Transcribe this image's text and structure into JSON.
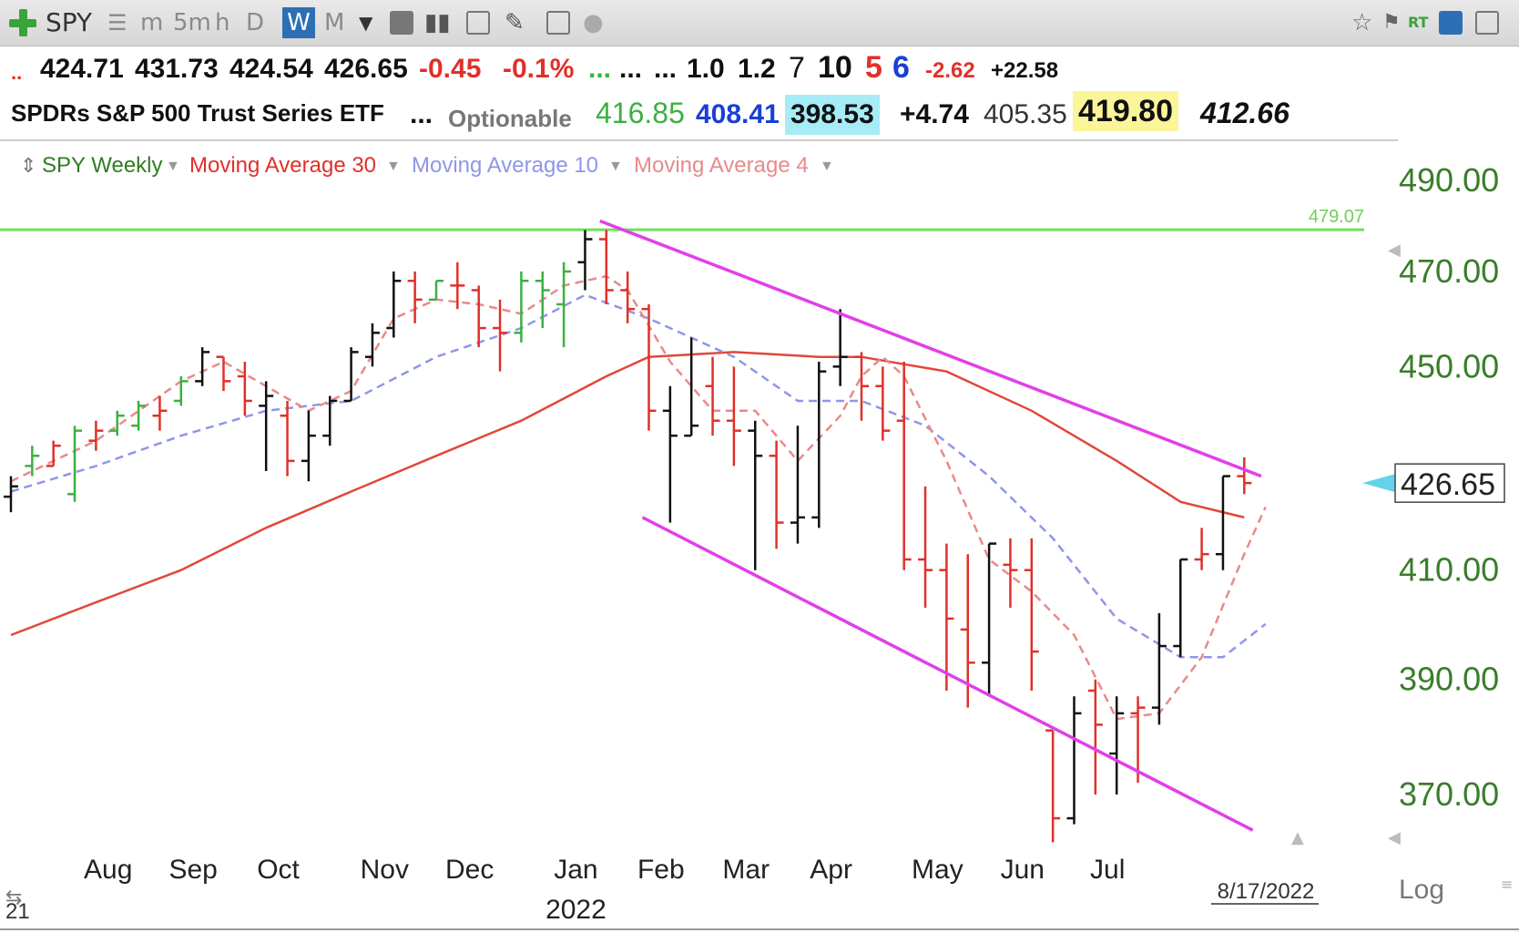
{
  "toolbar": {
    "symbol": "SPY",
    "periods": [
      "m",
      "5m",
      "h",
      "D",
      "W",
      "M"
    ],
    "active_period": "W"
  },
  "quote_row1": {
    "open": "424.71",
    "high": "431.73",
    "low": "424.54",
    "close": "426.65",
    "change": "-0.45",
    "change_pct": "-0.1%",
    "dots1": "...",
    "dots2": "...",
    "dots3": "...",
    "v1": "1.0",
    "v2": "1.2",
    "v3": "7",
    "v4": "10",
    "v5": "5",
    "v6": "6",
    "v7": "-2.62",
    "v8": "+22.58"
  },
  "quote_row2": {
    "name": "SPDRs S&P 500 Trust Series ETF",
    "dots": "...",
    "optionable": "Optionable",
    "p1": "416.85",
    "p2": "408.41",
    "p3": "398.53",
    "p4": "+4.74",
    "p5": "405.35",
    "p6": "419.80",
    "p7": "412.66"
  },
  "colors": {
    "up_bar": "#3cb043",
    "down_bar": "#e0302a",
    "neutral_bar": "#111111",
    "ma30": "#e0483a",
    "ma10": "#8f96e8",
    "ma4": "#e88a8a",
    "trendline": "#e040e8",
    "level_line": "#6fe05a",
    "price_axis": "#3a7d2a"
  },
  "chart_data": {
    "type": "ohlc",
    "legend": {
      "series_label": "SPY Weekly",
      "ma30": "Moving Average 30",
      "ma10": "Moving Average 10",
      "ma4": "Moving Average 4"
    },
    "y_axis": {
      "scale": "log",
      "ticks": [
        "490.00",
        "470.00",
        "450.00",
        "410.00",
        "390.00",
        "370.00"
      ],
      "range": [
        361,
        497
      ],
      "scale_label": "Log"
    },
    "x_axis": {
      "months": [
        "Aug",
        "Sep",
        "Oct",
        "Nov",
        "Dec",
        "Jan",
        "Feb",
        "Mar",
        "Apr",
        "May",
        "Jun",
        "Jul"
      ],
      "month_week_index": [
        5,
        9,
        13,
        18,
        22,
        27,
        31,
        35,
        39,
        44,
        48,
        52
      ],
      "year_label": "2022",
      "year_week_index": 27,
      "date_label": "8/17/2022",
      "corner_label": "21"
    },
    "last_price": "426.65",
    "level": {
      "value": 479.07,
      "label": "479.07"
    },
    "bars": [
      {
        "o": 424.0,
        "h": 428.0,
        "l": 421.0,
        "c": 426.0,
        "t": "n"
      },
      {
        "o": 430.0,
        "h": 434.0,
        "l": 428.0,
        "c": 432.0,
        "t": "u"
      },
      {
        "o": 430.0,
        "h": 435.0,
        "l": 430.0,
        "c": 434.0,
        "t": "r"
      },
      {
        "o": 424.5,
        "h": 438.0,
        "l": 423.0,
        "c": 437.0,
        "t": "u"
      },
      {
        "o": 435.0,
        "h": 439.0,
        "l": 433.0,
        "c": 437.0,
        "t": "r"
      },
      {
        "o": 437.0,
        "h": 441.0,
        "l": 436.0,
        "c": 440.0,
        "t": "u"
      },
      {
        "o": 438.0,
        "h": 443.0,
        "l": 437.0,
        "c": 442.0,
        "t": "u"
      },
      {
        "o": 440.0,
        "h": 444.0,
        "l": 437.0,
        "c": 441.0,
        "t": "r"
      },
      {
        "o": 443.0,
        "h": 448.0,
        "l": 442.0,
        "c": 447.0,
        "t": "u"
      },
      {
        "o": 447.0,
        "h": 454.0,
        "l": 446.0,
        "c": 453.0,
        "t": "n"
      },
      {
        "o": 452.0,
        "h": 452.0,
        "l": 445.0,
        "c": 447.0,
        "t": "r"
      },
      {
        "o": 448.0,
        "h": 451.0,
        "l": 440.0,
        "c": 443.0,
        "t": "r"
      },
      {
        "o": 442.0,
        "h": 447.0,
        "l": 429.0,
        "c": 444.0,
        "t": "n"
      },
      {
        "o": 440.0,
        "h": 443.0,
        "l": 428.0,
        "c": 431.0,
        "t": "r"
      },
      {
        "o": 431.0,
        "h": 441.0,
        "l": 427.0,
        "c": 436.0,
        "t": "n"
      },
      {
        "o": 436.0,
        "h": 444.0,
        "l": 434.0,
        "c": 443.0,
        "t": "n"
      },
      {
        "o": 443.0,
        "h": 454.0,
        "l": 443.0,
        "c": 453.0,
        "t": "n"
      },
      {
        "o": 452.0,
        "h": 459.0,
        "l": 450.0,
        "c": 457.0,
        "t": "n"
      },
      {
        "o": 458.0,
        "h": 470.0,
        "l": 456.0,
        "c": 468.0,
        "t": "n"
      },
      {
        "o": 468.0,
        "h": 470.0,
        "l": 459.0,
        "c": 464.0,
        "t": "r"
      },
      {
        "o": 464.0,
        "h": 468.0,
        "l": 464.0,
        "c": 468.0,
        "t": "u"
      },
      {
        "o": 467.0,
        "h": 472.0,
        "l": 462.0,
        "c": 467.0,
        "t": "r"
      },
      {
        "o": 466.0,
        "h": 467.0,
        "l": 454.0,
        "c": 458.0,
        "t": "r"
      },
      {
        "o": 458.0,
        "h": 464.0,
        "l": 449.0,
        "c": 457.0,
        "t": "r"
      },
      {
        "o": 457.0,
        "h": 470.0,
        "l": 455.0,
        "c": 468.0,
        "t": "u"
      },
      {
        "o": 468.0,
        "h": 470.0,
        "l": 458.0,
        "c": 466.0,
        "t": "u"
      },
      {
        "o": 463.0,
        "h": 472.0,
        "l": 454.0,
        "c": 470.0,
        "t": "u"
      },
      {
        "o": 472.0,
        "h": 479.0,
        "l": 466.0,
        "c": 477.0,
        "t": "n"
      },
      {
        "o": 477.0,
        "h": 479.0,
        "l": 463.0,
        "c": 466.0,
        "t": "r"
      },
      {
        "o": 466.0,
        "h": 470.0,
        "l": 459.0,
        "c": 462.0,
        "t": "r"
      },
      {
        "o": 462.0,
        "h": 463.0,
        "l": 437.0,
        "c": 441.0,
        "t": "r"
      },
      {
        "o": 441.0,
        "h": 446.0,
        "l": 419.0,
        "c": 436.0,
        "t": "n"
      },
      {
        "o": 436.0,
        "h": 456.0,
        "l": 436.0,
        "c": 438.0,
        "t": "n"
      },
      {
        "o": 446.0,
        "h": 452.0,
        "l": 436.0,
        "c": 439.0,
        "t": "r"
      },
      {
        "o": 439.0,
        "h": 450.0,
        "l": 430.0,
        "c": 437.0,
        "t": "r"
      },
      {
        "o": 437.0,
        "h": 439.0,
        "l": 410.0,
        "c": 432.0,
        "t": "n"
      },
      {
        "o": 432.0,
        "h": 435.0,
        "l": 414.0,
        "c": 419.0,
        "t": "r"
      },
      {
        "o": 419.0,
        "h": 438.0,
        "l": 415.0,
        "c": 420.0,
        "t": "n"
      },
      {
        "o": 420.0,
        "h": 451.0,
        "l": 418.0,
        "c": 449.0,
        "t": "n"
      },
      {
        "o": 450.0,
        "h": 462.0,
        "l": 446.0,
        "c": 452.0,
        "t": "n"
      },
      {
        "o": 452.0,
        "h": 453.0,
        "l": 439.0,
        "c": 446.0,
        "t": "r"
      },
      {
        "o": 446.0,
        "h": 450.0,
        "l": 435.0,
        "c": 437.0,
        "t": "r"
      },
      {
        "o": 439.0,
        "h": 451.0,
        "l": 410.0,
        "c": 412.0,
        "t": "r"
      },
      {
        "o": 412.0,
        "h": 426.0,
        "l": 403.0,
        "c": 410.0,
        "t": "r"
      },
      {
        "o": 410.0,
        "h": 415.0,
        "l": 388.0,
        "c": 401.0,
        "t": "r"
      },
      {
        "o": 399.0,
        "h": 413.0,
        "l": 385.0,
        "c": 393.0,
        "t": "r"
      },
      {
        "o": 393.0,
        "h": 415.0,
        "l": 387.0,
        "c": 415.0,
        "t": "n"
      },
      {
        "o": 411.0,
        "h": 416.0,
        "l": 403.0,
        "c": 410.0,
        "t": "r"
      },
      {
        "o": 410.0,
        "h": 416.0,
        "l": 388.0,
        "c": 395.0,
        "t": "r"
      },
      {
        "o": 381.0,
        "h": 381.0,
        "l": 362.0,
        "c": 366.0,
        "t": "r"
      },
      {
        "o": 366.0,
        "h": 387.0,
        "l": 365.0,
        "c": 384.0,
        "t": "n"
      },
      {
        "o": 388.0,
        "h": 390.0,
        "l": 370.0,
        "c": 382.0,
        "t": "r"
      },
      {
        "o": 377.0,
        "h": 387.0,
        "l": 370.0,
        "c": 384.0,
        "t": "n"
      },
      {
        "o": 384.0,
        "h": 387.0,
        "l": 372.0,
        "c": 385.0,
        "t": "r"
      },
      {
        "o": 385.0,
        "h": 402.0,
        "l": 382.0,
        "c": 396.0,
        "t": "n"
      },
      {
        "o": 396.0,
        "h": 412.0,
        "l": 394.0,
        "c": 412.0,
        "t": "n"
      },
      {
        "o": 412.0,
        "h": 418.0,
        "l": 410.0,
        "c": 413.0,
        "t": "r"
      },
      {
        "o": 413.0,
        "h": 428.0,
        "l": 410.0,
        "c": 428.0,
        "t": "n"
      },
      {
        "o": 428.0,
        "h": 431.7,
        "l": 424.5,
        "c": 426.65,
        "t": "r"
      }
    ],
    "ma30": [
      [
        0,
        398
      ],
      [
        4,
        404
      ],
      [
        8,
        410
      ],
      [
        12,
        418
      ],
      [
        16,
        425
      ],
      [
        20,
        432
      ],
      [
        24,
        439
      ],
      [
        28,
        448
      ],
      [
        30,
        452
      ],
      [
        34,
        453
      ],
      [
        38,
        452
      ],
      [
        40,
        452
      ],
      [
        44,
        449
      ],
      [
        48,
        441
      ],
      [
        52,
        431
      ],
      [
        55,
        423
      ],
      [
        58,
        420
      ]
    ],
    "ma10": [
      [
        0,
        425
      ],
      [
        4,
        430
      ],
      [
        8,
        436
      ],
      [
        12,
        441
      ],
      [
        16,
        443
      ],
      [
        20,
        452
      ],
      [
        24,
        458
      ],
      [
        27,
        465
      ],
      [
        30,
        460
      ],
      [
        34,
        452
      ],
      [
        37,
        443
      ],
      [
        40,
        443
      ],
      [
        43,
        438
      ],
      [
        46,
        428
      ],
      [
        49,
        416
      ],
      [
        52,
        401
      ],
      [
        55,
        394
      ],
      [
        57,
        394
      ],
      [
        59,
        400
      ]
    ],
    "ma4": [
      [
        0,
        427
      ],
      [
        4,
        435
      ],
      [
        8,
        447
      ],
      [
        10,
        451
      ],
      [
        12,
        446
      ],
      [
        14,
        441
      ],
      [
        16,
        445
      ],
      [
        18,
        460
      ],
      [
        20,
        464
      ],
      [
        22,
        463
      ],
      [
        24,
        461
      ],
      [
        26,
        467
      ],
      [
        28,
        469
      ],
      [
        29,
        466
      ],
      [
        31,
        451
      ],
      [
        33,
        441
      ],
      [
        35,
        441
      ],
      [
        37,
        431
      ],
      [
        39,
        440
      ],
      [
        40,
        448
      ],
      [
        41,
        452
      ],
      [
        42,
        448
      ],
      [
        44,
        431
      ],
      [
        46,
        412
      ],
      [
        48,
        406
      ],
      [
        50,
        398
      ],
      [
        52,
        383
      ],
      [
        54,
        384
      ],
      [
        56,
        394
      ],
      [
        58,
        413
      ],
      [
        59,
        422
      ]
    ],
    "upper_trendline": [
      [
        27.7,
        481
      ],
      [
        58.8,
        428
      ]
    ],
    "lower_trendline": [
      [
        29.7,
        420
      ],
      [
        58.4,
        364
      ]
    ]
  }
}
